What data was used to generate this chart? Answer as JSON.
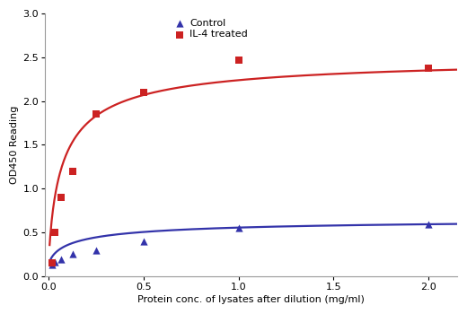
{
  "control_x": [
    0.016,
    0.031,
    0.063,
    0.125,
    0.25,
    0.5,
    1.0,
    2.0
  ],
  "control_y": [
    0.13,
    0.16,
    0.19,
    0.25,
    0.3,
    0.4,
    0.55,
    0.59
  ],
  "il4_x": [
    0.016,
    0.031,
    0.063,
    0.125,
    0.25,
    0.5,
    1.0,
    2.0
  ],
  "il4_y": [
    0.15,
    0.5,
    0.9,
    1.2,
    1.85,
    2.1,
    2.47,
    2.38
  ],
  "control_color": "#3333aa",
  "il4_color": "#cc2222",
  "xlabel": "Protein conc. of lysates after dilution (mg/ml)",
  "ylabel": "OD450 Reading",
  "legend_control": "Control",
  "legend_il4": "IL-4 treated",
  "xlim": [
    -0.02,
    2.15
  ],
  "ylim": [
    0.0,
    3.0
  ],
  "xticks": [
    0.0,
    0.5,
    1.0,
    1.5,
    2.0
  ],
  "yticks": [
    0.0,
    0.5,
    1.0,
    1.5,
    2.0,
    2.5,
    3.0
  ],
  "bg_color": "#ffffff",
  "fig_bg": "#ffffff"
}
